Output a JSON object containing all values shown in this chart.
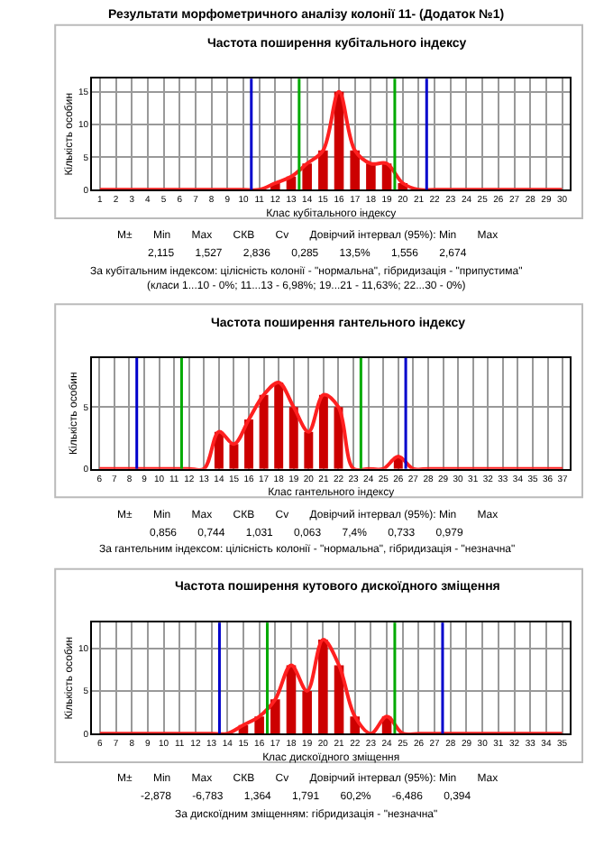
{
  "chart_data": [
    {
      "type": "bar",
      "subtitle": "Результати морфометричного аналізу колонії 11- (Додаток №1)",
      "title": "Частота поширення кубітального індексу",
      "xlabel": "Клас кубітального індексу",
      "ylabel": "Кількість особин",
      "x": [
        1,
        2,
        3,
        4,
        5,
        6,
        7,
        8,
        9,
        10,
        11,
        12,
        13,
        14,
        15,
        16,
        17,
        18,
        19,
        20,
        21,
        22,
        23,
        24,
        25,
        26,
        27,
        28,
        29,
        30
      ],
      "series": [
        {
          "color": "#cc0000",
          "values": [
            0,
            0,
            0,
            0,
            0,
            0,
            0,
            0,
            0,
            0,
            0,
            1,
            2,
            4,
            6,
            15,
            6,
            4,
            4,
            1,
            0,
            0,
            0,
            0,
            0,
            0,
            0,
            0,
            0,
            0
          ]
        },
        {
          "type": "line",
          "color": "#ff2020",
          "values": [
            0,
            0,
            0,
            0,
            0,
            0,
            0,
            0,
            0,
            0,
            0,
            1,
            2,
            4,
            6,
            15,
            6,
            4,
            4,
            1,
            0,
            0,
            0,
            0,
            0,
            0,
            0,
            0,
            0,
            0
          ]
        }
      ],
      "xlim": [
        0.5,
        30.5
      ],
      "xticks": [
        1,
        2,
        3,
        4,
        5,
        6,
        7,
        8,
        9,
        10,
        11,
        12,
        13,
        14,
        15,
        16,
        17,
        18,
        19,
        20,
        21,
        22,
        23,
        24,
        25,
        26,
        27,
        28,
        29,
        30
      ],
      "ylim": [
        0,
        17
      ],
      "yticks": [
        0,
        5,
        10,
        15
      ],
      "ref_lines": [
        {
          "axis": "x",
          "value": 10.5,
          "color": "#0000cc"
        },
        {
          "axis": "x",
          "value": 13.5,
          "color": "#00aa00"
        },
        {
          "axis": "x",
          "value": 19.5,
          "color": "#00aa00"
        },
        {
          "axis": "x",
          "value": 21.5,
          "color": "#0000cc"
        }
      ],
      "grid": true,
      "marker": "none",
      "annotations": [
        "M±       Min       Max       СКВ       Cv       Довірчий інтервал (95%): Min       Max",
        "2,115       1,527       2,836       0,285       13,5%       1,556       2,674",
        "За кубітальним індексом: цілісність колонії - \"нормальна\", гібридизація - \"припустима\" (класи 1...10 - 0%; 11...13 - 6,98%; 19...21 - 11,63%; 22...30 - 0%)"
      ]
    },
    {
      "type": "bar",
      "title": "Частота поширення гантельного індексу",
      "xlabel": "Клас гантельного індексу",
      "ylabel": "Кількість особин",
      "x": [
        6,
        7,
        8,
        9,
        10,
        11,
        12,
        13,
        14,
        15,
        16,
        17,
        18,
        19,
        20,
        21,
        22,
        23,
        24,
        25,
        26,
        27,
        28,
        29,
        30,
        31,
        32,
        33,
        34,
        35,
        36,
        37
      ],
      "series": [
        {
          "color": "#cc0000",
          "values": [
            0,
            0,
            0,
            0,
            0,
            0,
            0,
            0,
            3,
            2,
            4,
            6,
            7,
            5,
            3,
            6,
            5,
            0,
            0,
            0,
            1,
            0,
            0,
            0,
            0,
            0,
            0,
            0,
            0,
            0,
            0,
            0
          ]
        },
        {
          "type": "line",
          "color": "#ff2020",
          "values": [
            0,
            0,
            0,
            0,
            0,
            0,
            0,
            0,
            3,
            2,
            4,
            6,
            7,
            5,
            3,
            6,
            5,
            0,
            0,
            0,
            1,
            0,
            0,
            0,
            0,
            0,
            0,
            0,
            0,
            0,
            0,
            0
          ]
        }
      ],
      "xlim": [
        5.5,
        37.5
      ],
      "xticks": [
        6,
        7,
        8,
        9,
        10,
        11,
        12,
        13,
        14,
        15,
        16,
        17,
        18,
        19,
        20,
        21,
        22,
        23,
        24,
        25,
        26,
        27,
        28,
        29,
        30,
        31,
        32,
        33,
        34,
        35,
        36,
        37
      ],
      "ylim": [
        0,
        9
      ],
      "yticks": [
        0,
        5
      ],
      "ref_lines": [
        {
          "axis": "x",
          "value": 8.5,
          "color": "#0000cc"
        },
        {
          "axis": "x",
          "value": 11.5,
          "color": "#00aa00"
        },
        {
          "axis": "x",
          "value": 23.5,
          "color": "#00aa00"
        },
        {
          "axis": "x",
          "value": 26.5,
          "color": "#0000cc"
        }
      ],
      "grid": true,
      "marker": "none",
      "annotations": [
        "M±       Min       Max       СКВ       Cv       Довірчий інтервал (95%): Min       Max",
        "0,856       0,744       1,031       0,063       7,4%       0,733       0,979",
        "За гантельним індексом: цілісність колонії - \"нормальна\", гібридизація - \"незначна\""
      ]
    },
    {
      "type": "bar",
      "title": "Частота поширення кутового дискоїдного зміщення",
      "xlabel": "Клас дискоїдного зміщення",
      "ylabel": "Кількість особин",
      "x": [
        6,
        7,
        8,
        9,
        10,
        11,
        12,
        13,
        14,
        15,
        16,
        17,
        18,
        19,
        20,
        21,
        22,
        23,
        24,
        25,
        26,
        27,
        28,
        29,
        30,
        31,
        32,
        33,
        34,
        35
      ],
      "series": [
        {
          "color": "#cc0000",
          "values": [
            0,
            0,
            0,
            0,
            0,
            0,
            0,
            0,
            0,
            1,
            2,
            4,
            8,
            5,
            11,
            8,
            2,
            0,
            2,
            0,
            0,
            0,
            0,
            0,
            0,
            0,
            0,
            0,
            0,
            0
          ]
        },
        {
          "type": "line",
          "color": "#ff2020",
          "values": [
            0,
            0,
            0,
            0,
            0,
            0,
            0,
            0,
            0,
            1,
            2,
            4,
            8,
            5,
            11,
            8,
            2,
            0,
            2,
            0,
            0,
            0,
            0,
            0,
            0,
            0,
            0,
            0,
            0,
            0
          ]
        }
      ],
      "xlim": [
        5.5,
        35.5
      ],
      "xticks": [
        6,
        7,
        8,
        9,
        10,
        11,
        12,
        13,
        14,
        15,
        16,
        17,
        18,
        19,
        20,
        21,
        22,
        23,
        24,
        25,
        26,
        27,
        28,
        29,
        30,
        31,
        32,
        33,
        34,
        35
      ],
      "ylim": [
        0,
        13
      ],
      "yticks": [
        0,
        5,
        10
      ],
      "ref_lines": [
        {
          "axis": "x",
          "value": 13.5,
          "color": "#0000cc"
        },
        {
          "axis": "x",
          "value": 16.5,
          "color": "#00aa00"
        },
        {
          "axis": "x",
          "value": 24.5,
          "color": "#00aa00"
        },
        {
          "axis": "x",
          "value": 27.5,
          "color": "#0000cc"
        }
      ],
      "grid": true,
      "marker": "none",
      "annotations": [
        "M±       Min       Max       СКВ       Cv       Довірчий інтервал (95%): Min       Max",
        "-2,878       -6,783       1,364       1,791       60,2%       -6,486       0,394",
        "За дискоїдним зміщенням: гібридизація - \"незначна\""
      ]
    }
  ]
}
